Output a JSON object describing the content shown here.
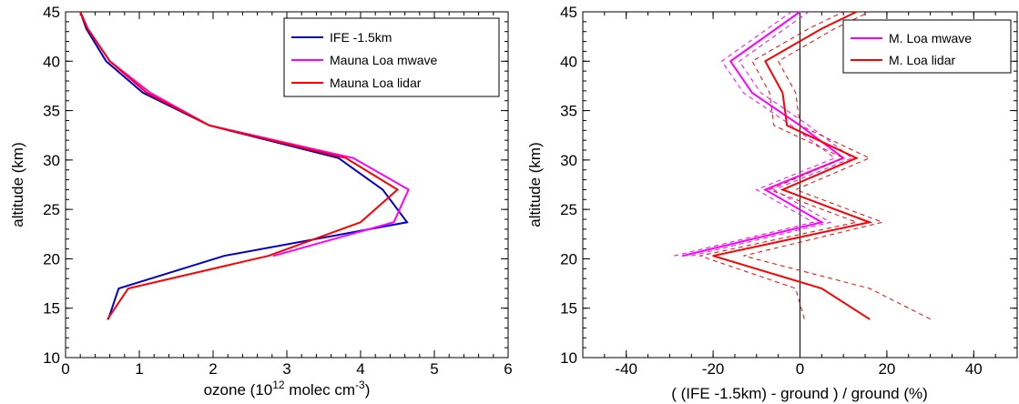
{
  "colors": {
    "blue": "#0000cc",
    "magenta": "#ff00ff",
    "red": "#ff0000",
    "black": "#000000"
  },
  "chart_data": [
    {
      "type": "line",
      "xlabel": "ozone  (10^12 molec cm^-3)",
      "xlabel_parts": {
        "pre": "ozone  (10",
        "sup1": "12",
        "mid": " molec cm",
        "sup2": "-3",
        "post": ")"
      },
      "ylabel": "altitude  (km)",
      "xlim": [
        0,
        6
      ],
      "ylim": [
        10,
        45
      ],
      "x_ticks": [
        "0",
        "1",
        "2",
        "3",
        "4",
        "5",
        "6"
      ],
      "y_ticks": [
        "10",
        "15",
        "20",
        "25",
        "30",
        "35",
        "40",
        "45"
      ],
      "legend_position": "top-right",
      "series": [
        {
          "name": "IFE -1.5km",
          "color": "#0000cc",
          "points": [
            [
              0.58,
              13.9
            ],
            [
              0.72,
              17.0
            ],
            [
              2.15,
              20.3
            ],
            [
              4.63,
              23.7
            ],
            [
              4.3,
              27.0
            ],
            [
              3.7,
              30.2
            ],
            [
              1.95,
              33.5
            ],
            [
              1.05,
              36.8
            ],
            [
              0.55,
              40.0
            ],
            [
              0.28,
              43.3
            ],
            [
              0.2,
              45.0
            ]
          ]
        },
        {
          "name": "Mauna Loa mwave",
          "color": "#ff00ff",
          "points": [
            [
              2.82,
              20.3
            ],
            [
              4.45,
              23.7
            ],
            [
              4.65,
              27.0
            ],
            [
              3.9,
              30.2
            ],
            [
              1.95,
              33.5
            ],
            [
              1.15,
              36.8
            ],
            [
              0.6,
              40.0
            ],
            [
              0.3,
              43.3
            ],
            [
              0.2,
              45.0
            ]
          ]
        },
        {
          "name": "Mauna Loa lidar",
          "color": "#ff0000",
          "points": [
            [
              0.57,
              13.9
            ],
            [
              0.85,
              17.0
            ],
            [
              2.75,
              20.3
            ],
            [
              4.0,
              23.7
            ],
            [
              4.5,
              27.0
            ],
            [
              3.8,
              30.2
            ],
            [
              1.95,
              33.5
            ],
            [
              1.1,
              36.8
            ],
            [
              0.6,
              40.0
            ],
            [
              0.3,
              43.3
            ],
            [
              0.2,
              45.0
            ]
          ]
        }
      ]
    },
    {
      "type": "line",
      "xlabel": "( (IFE -1.5km) - ground ) / ground  (%)",
      "ylabel": "altitude  (km)",
      "xlim": [
        -50,
        50
      ],
      "ylim": [
        10,
        45
      ],
      "x_ticks": [
        "-40",
        "-20",
        "0",
        "20",
        "40"
      ],
      "y_ticks": [
        "10",
        "15",
        "20",
        "25",
        "30",
        "35",
        "40",
        "45"
      ],
      "legend_position": "top-right",
      "zero_line": true,
      "series": [
        {
          "name": "M. Loa mwave",
          "color": "#ff00ff",
          "points": [
            [
              -27,
              20.3
            ],
            [
              5,
              23.7
            ],
            [
              -8,
              27.0
            ],
            [
              10,
              30.2
            ],
            [
              0,
              33.5
            ],
            [
              -11,
              36.8
            ],
            [
              -16,
              40.0
            ],
            [
              0,
              45.0
            ]
          ],
          "bounds": [
            {
              "x": [
                -29,
                3,
                -10,
                8,
                -2,
                -13,
                -18,
                -2
              ],
              "y": [
                20.3,
                23.7,
                27.0,
                30.2,
                33.5,
                36.8,
                40.0,
                45.0
              ]
            },
            {
              "x": [
                -25,
                7,
                -6,
                12,
                2,
                -9,
                -14,
                2
              ],
              "y": [
                20.3,
                23.7,
                27.0,
                30.2,
                33.5,
                36.8,
                40.0,
                45.0
              ]
            }
          ]
        },
        {
          "name": "M. Loa lidar",
          "color": "#ff0000",
          "points": [
            [
              16,
              13.9
            ],
            [
              5,
              17.0
            ],
            [
              -20,
              20.3
            ],
            [
              16,
              23.7
            ],
            [
              -4,
              27.0
            ],
            [
              13,
              30.2
            ],
            [
              -3,
              33.5
            ],
            [
              -4,
              36.8
            ],
            [
              -8,
              40.0
            ],
            [
              5,
              43.3
            ],
            [
              13,
              45.0
            ]
          ],
          "bounds": [
            {
              "x": [
                1,
                -1,
                -23,
                13,
                -7,
                10,
                -6,
                -7,
                -11,
                2,
                10
              ],
              "y": [
                13.9,
                17.0,
                20.3,
                23.7,
                27.0,
                30.2,
                33.5,
                36.8,
                40.0,
                43.3,
                45.0
              ]
            },
            {
              "x": [
                30,
                16,
                -13,
                19,
                -1,
                16,
                0,
                -1,
                -5,
                8,
                16
              ],
              "y": [
                13.9,
                17.0,
                20.3,
                23.7,
                27.0,
                30.2,
                33.5,
                36.8,
                40.0,
                43.3,
                45.0
              ]
            }
          ]
        }
      ]
    }
  ]
}
